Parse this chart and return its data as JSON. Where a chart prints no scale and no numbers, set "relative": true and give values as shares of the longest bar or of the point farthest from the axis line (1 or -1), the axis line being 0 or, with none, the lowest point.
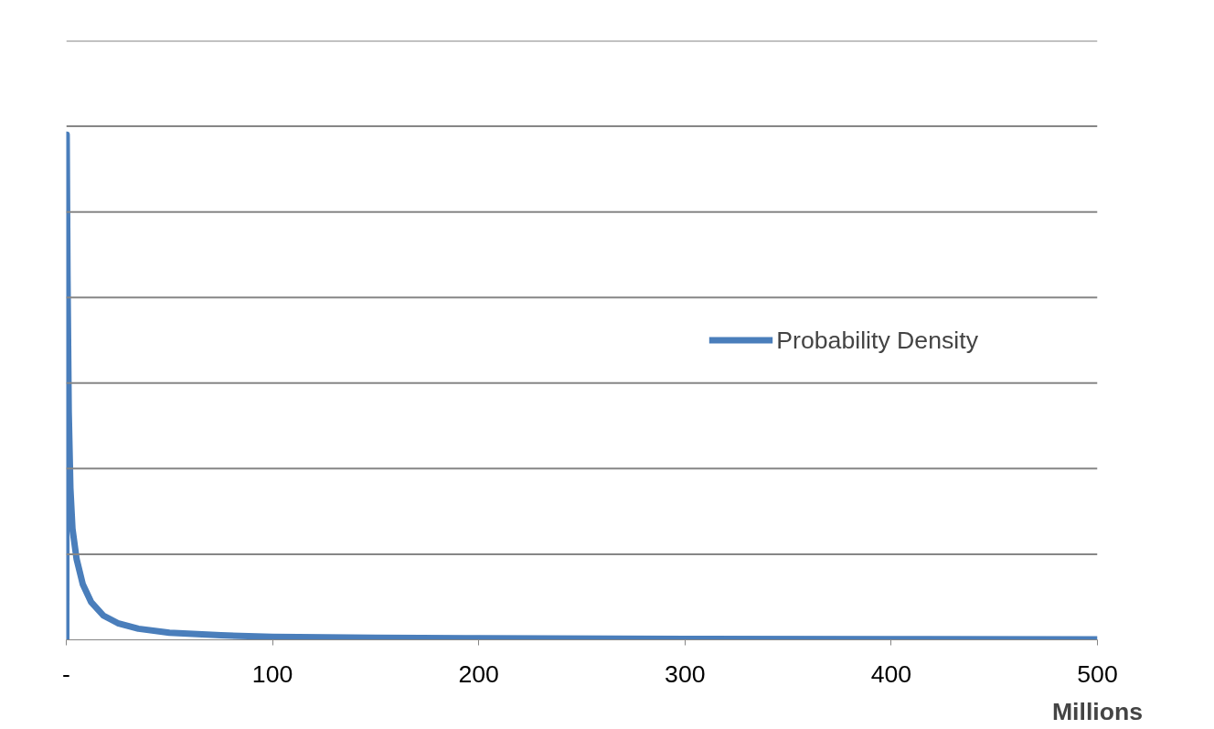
{
  "chart_data": {
    "type": "line",
    "xlabel": "Millions",
    "relative": true,
    "x": [
      0,
      0.2,
      0.6,
      1.2,
      2,
      3,
      5,
      8,
      12,
      18,
      25,
      35,
      50,
      75,
      100,
      150,
      200,
      300,
      400,
      500
    ],
    "series": [
      {
        "name": "Probability Density",
        "color": "#4a7ebb",
        "values": [
          0,
          1,
          0.72,
          0.45,
          0.3,
          0.22,
          0.16,
          0.11,
          0.075,
          0.048,
          0.033,
          0.022,
          0.014,
          0.009,
          0.006,
          0.004,
          0.003,
          0.002,
          0.0015,
          0.001
        ]
      }
    ],
    "xlim": [
      0,
      500
    ],
    "xticks": [
      {
        "value": 0,
        "label": "-"
      },
      100,
      200,
      300,
      400,
      500
    ],
    "grid": "y",
    "legend": "right",
    "marker": "none",
    "line_style": "solid"
  }
}
